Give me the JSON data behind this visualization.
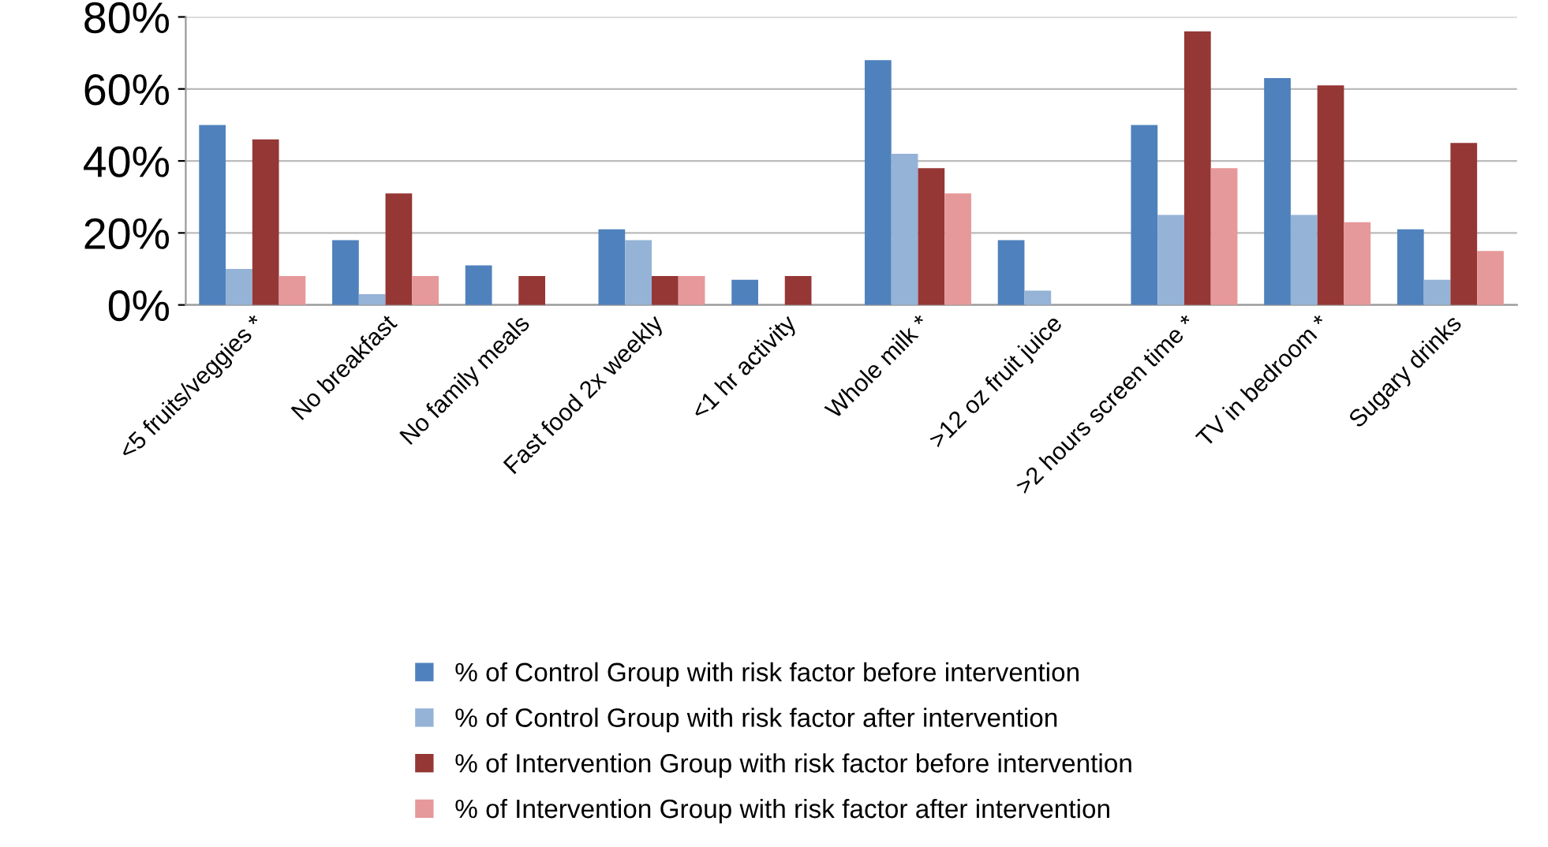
{
  "chart_data": {
    "type": "bar",
    "categories": [
      "<5 fruits/veggies *",
      "No breakfast",
      "No family meals",
      "Fast food 2x weekly",
      "<1 hr activity",
      "Whole milk *",
      ">12 oz fruit juice",
      ">2 hours screen time *",
      "TV in bedroom *",
      "Sugary drinks"
    ],
    "series": [
      {
        "name": "% of Control Group with risk factor before intervention",
        "color": "#4f81bd",
        "values": [
          50,
          18,
          11,
          21,
          7,
          68,
          18,
          50,
          63,
          21
        ]
      },
      {
        "name": "% of Control Group with risk factor after intervention",
        "color": "#95b3d7",
        "values": [
          10,
          3,
          0,
          18,
          0,
          42,
          4,
          25,
          25,
          7
        ]
      },
      {
        "name": "% of Intervention Group with risk factor before intervention",
        "color": "#953735",
        "values": [
          46,
          31,
          8,
          8,
          8,
          38,
          0,
          76,
          61,
          45
        ]
      },
      {
        "name": "% of Intervention Group with risk factor after intervention",
        "color": "#e6999a",
        "values": [
          8,
          8,
          0,
          8,
          0,
          31,
          0,
          38,
          23,
          15
        ]
      }
    ],
    "ylim": [
      0,
      80
    ],
    "yticks": [
      {
        "value": 0,
        "label": "0%"
      },
      {
        "value": 20,
        "label": "20%"
      },
      {
        "value": 40,
        "label": "40%"
      },
      {
        "value": 60,
        "label": "60%"
      },
      {
        "value": 80,
        "label": "80%"
      }
    ],
    "grid": "y",
    "legend": "bottom"
  }
}
